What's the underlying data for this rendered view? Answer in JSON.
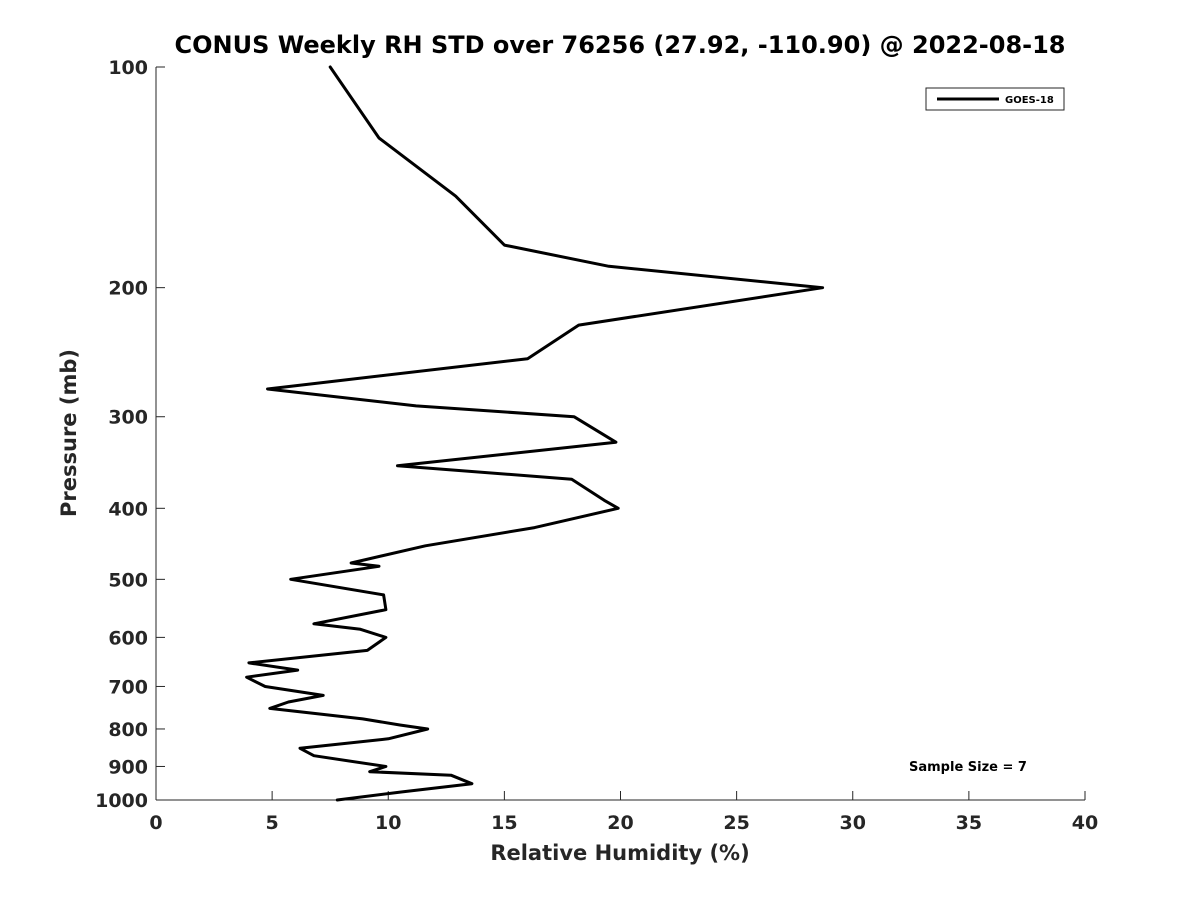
{
  "chart_data": {
    "type": "line",
    "title": "CONUS Weekly RH STD over 76256 (27.92, -110.90) @ 2022-08-18",
    "xlabel": "Relative Humidity (%)",
    "ylabel": "Pressure (mb)",
    "xlim": [
      0,
      40
    ],
    "ylim": [
      100,
      1000
    ],
    "y_scale": "log",
    "y_reversed": true,
    "x_ticks": [
      0,
      5,
      10,
      15,
      20,
      25,
      30,
      35,
      40
    ],
    "x_tick_labels": [
      "0",
      "5",
      "10",
      "15",
      "20",
      "25",
      "30",
      "35",
      "40"
    ],
    "y_ticks": [
      100,
      200,
      300,
      400,
      500,
      600,
      700,
      800,
      900,
      1000
    ],
    "y_tick_labels": [
      "100",
      "200",
      "300",
      "400",
      "500",
      "600",
      "700",
      "800",
      "900",
      "1000"
    ],
    "grid": false,
    "legend_position": "top-right",
    "annotation": "Sample Size = 7",
    "series": [
      {
        "name": "GOES-18",
        "color": "#000000",
        "points": [
          [
            7.5,
            100
          ],
          [
            9.6,
            125
          ],
          [
            12.9,
            150
          ],
          [
            15.0,
            175
          ],
          [
            19.5,
            187
          ],
          [
            28.7,
            200
          ],
          [
            18.2,
            225
          ],
          [
            16.0,
            250
          ],
          [
            4.8,
            275
          ],
          [
            11.2,
            290
          ],
          [
            18.0,
            300
          ],
          [
            19.8,
            325
          ],
          [
            10.4,
            350
          ],
          [
            17.9,
            365
          ],
          [
            19.3,
            390
          ],
          [
            19.9,
            400
          ],
          [
            16.3,
            425
          ],
          [
            11.6,
            450
          ],
          [
            8.4,
            475
          ],
          [
            9.6,
            480
          ],
          [
            5.8,
            500
          ],
          [
            9.8,
            525
          ],
          [
            9.9,
            550
          ],
          [
            6.8,
            575
          ],
          [
            8.8,
            585
          ],
          [
            9.9,
            600
          ],
          [
            9.1,
            625
          ],
          [
            4.0,
            650
          ],
          [
            6.1,
            665
          ],
          [
            3.9,
            680
          ],
          [
            4.7,
            700
          ],
          [
            7.2,
            720
          ],
          [
            5.7,
            735
          ],
          [
            4.9,
            750
          ],
          [
            8.9,
            775
          ],
          [
            10.5,
            790
          ],
          [
            11.7,
            800
          ],
          [
            10.0,
            825
          ],
          [
            6.2,
            850
          ],
          [
            6.8,
            870
          ],
          [
            9.9,
            900
          ],
          [
            9.2,
            915
          ],
          [
            12.7,
            925
          ],
          [
            13.6,
            950
          ],
          [
            10.6,
            975
          ],
          [
            7.8,
            1000
          ]
        ]
      }
    ]
  }
}
